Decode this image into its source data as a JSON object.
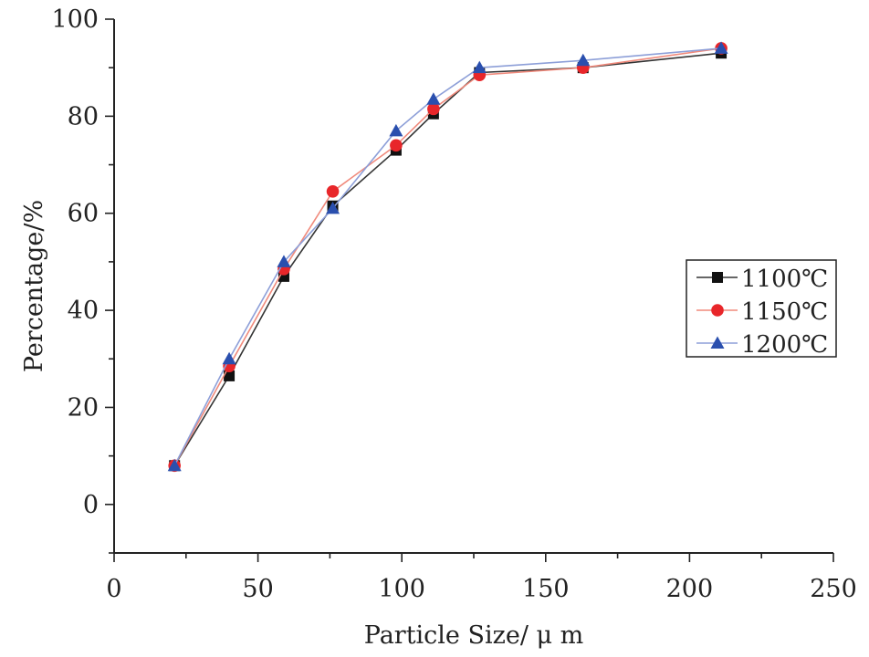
{
  "chart_data": {
    "type": "line",
    "xlabel": "Particle Size/ μ m",
    "ylabel": "Percentage/%",
    "xlim": [
      0,
      250
    ],
    "ylim": [
      -10,
      100
    ],
    "x_ticks": [
      0,
      50,
      100,
      150,
      200,
      250
    ],
    "y_ticks": [
      0,
      20,
      40,
      60,
      80,
      100
    ],
    "grid": false,
    "legend_position": "right",
    "x": [
      21,
      40,
      59,
      76,
      98,
      111,
      127,
      163,
      211
    ],
    "series": [
      {
        "name": "1100℃",
        "marker": "square",
        "color": "#111111",
        "line_color": "#333333",
        "values": [
          8,
          26.5,
          47,
          61.5,
          73,
          80.5,
          89,
          90,
          93
        ]
      },
      {
        "name": "1150℃",
        "marker": "circle",
        "color": "#e8262a",
        "line_color": "#f08a7c",
        "values": [
          8,
          28.5,
          48.5,
          64.5,
          74,
          81.5,
          88.5,
          90,
          94
        ]
      },
      {
        "name": "1200℃",
        "marker": "triangle",
        "color": "#2a4fae",
        "line_color": "#8d9fd8",
        "values": [
          8,
          30,
          50,
          61,
          77,
          83.5,
          90,
          91.5,
          94
        ]
      }
    ]
  }
}
